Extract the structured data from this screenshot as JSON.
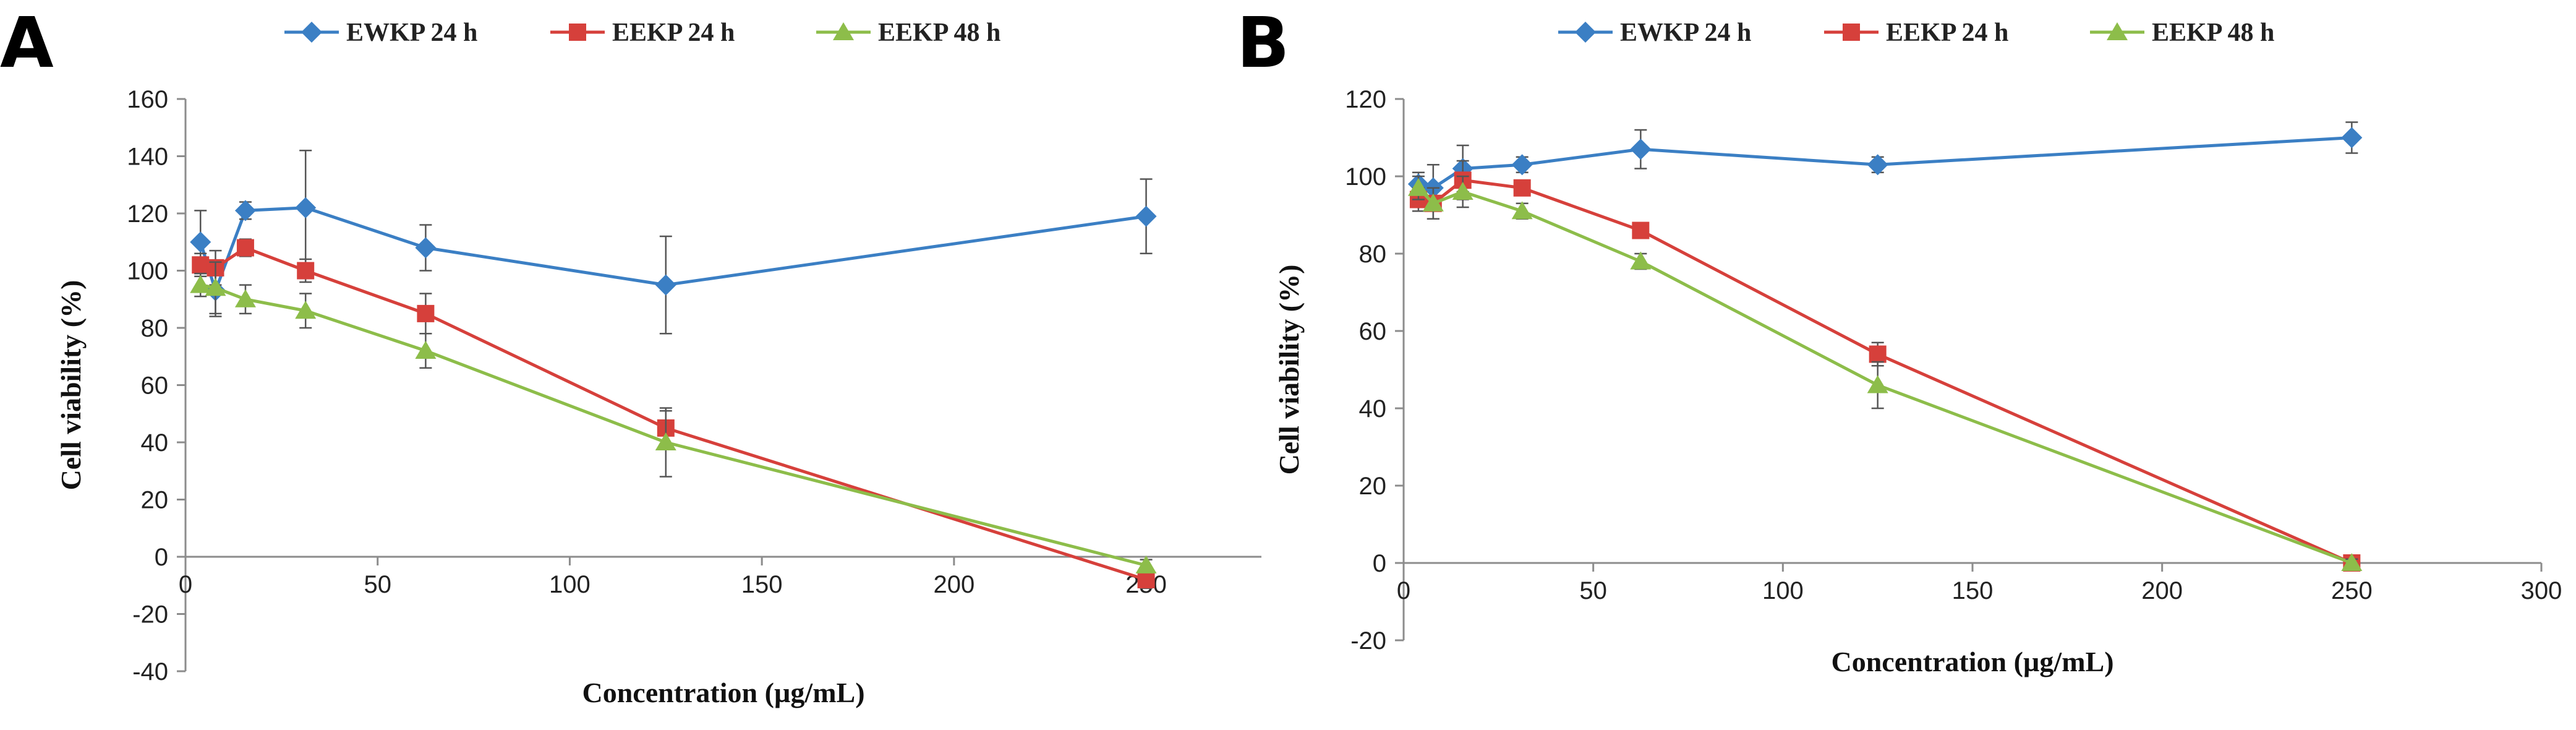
{
  "colors": {
    "EWKP 24 h": "#3b7fc4",
    "EEKP 24 h": "#d6403b",
    "EEKP 48 h": "#8dbd4a"
  },
  "chart_data": [
    {
      "type": "line",
      "panel_label": "A",
      "title": "",
      "xlabel": "Concentration (µg/mL)",
      "ylabel": "Cell viability (%)",
      "xlim": [
        0,
        280
      ],
      "ylim": [
        -40,
        160
      ],
      "xticks": [
        0,
        50,
        100,
        150,
        200,
        250
      ],
      "yticks": [
        -40,
        -20,
        0,
        20,
        40,
        60,
        80,
        100,
        120,
        140,
        160
      ],
      "xtick_labels": [
        "0",
        "50",
        "100",
        "150",
        "200",
        "250"
      ],
      "ytick_labels": [
        "-40",
        "-20",
        "0",
        "20",
        "40",
        "60",
        "80",
        "100",
        "120",
        "140",
        "160"
      ],
      "legend": {
        "position": "top",
        "entries": [
          "EWKP 24 h",
          "EEKP 24 h",
          "EEKP 48 h"
        ]
      },
      "series": [
        {
          "name": "EWKP 24 h",
          "marker": "diamond",
          "x": [
            3.9,
            7.8,
            15.6,
            31.25,
            62.5,
            125,
            250
          ],
          "y": [
            110,
            93,
            121,
            122,
            108,
            95,
            119
          ],
          "err": [
            11,
            9,
            3,
            20,
            8,
            17,
            13
          ]
        },
        {
          "name": "EEKP 24 h",
          "marker": "square",
          "x": [
            3.9,
            7.8,
            15.6,
            31.25,
            62.5,
            125,
            250
          ],
          "y": [
            102,
            101,
            108,
            100,
            85,
            45,
            -8
          ],
          "err": [
            4,
            6,
            3,
            4,
            7,
            6,
            3
          ]
        },
        {
          "name": "EEKP 48 h",
          "marker": "triangle",
          "x": [
            3.9,
            7.8,
            15.6,
            31.25,
            62.5,
            125,
            250
          ],
          "y": [
            95,
            94,
            90,
            86,
            72,
            40,
            -3
          ],
          "err": [
            4,
            9,
            5,
            6,
            6,
            12,
            2
          ]
        }
      ]
    },
    {
      "type": "line",
      "panel_label": "B",
      "title": "",
      "xlabel": "Concentration (µg/mL)",
      "ylabel": "Cell viability (%)",
      "xlim": [
        0,
        300
      ],
      "ylim": [
        -20,
        120
      ],
      "xticks": [
        0,
        50,
        100,
        150,
        200,
        250,
        300
      ],
      "yticks": [
        -20,
        0,
        20,
        40,
        60,
        80,
        100,
        120
      ],
      "xtick_labels": [
        "0",
        "50",
        "100",
        "150",
        "200",
        "250",
        "300"
      ],
      "ytick_labels": [
        "-20",
        "0",
        "20",
        "40",
        "60",
        "80",
        "100",
        "120"
      ],
      "legend": {
        "position": "top",
        "entries": [
          "EWKP 24 h",
          "EEKP 24 h",
          "EEKP 48 h"
        ]
      },
      "series": [
        {
          "name": "EWKP 24 h",
          "marker": "diamond",
          "x": [
            3.9,
            7.8,
            15.6,
            31.25,
            62.5,
            125,
            250
          ],
          "y": [
            98,
            97,
            102,
            103,
            107,
            103,
            110
          ],
          "err": [
            3,
            6,
            6,
            2,
            5,
            2,
            4
          ]
        },
        {
          "name": "EEKP 24 h",
          "marker": "square",
          "x": [
            3.9,
            7.8,
            15.6,
            31.25,
            62.5,
            125,
            250
          ],
          "y": [
            94,
            93,
            99,
            97,
            86,
            54,
            0
          ],
          "err": [
            3,
            4,
            5,
            2,
            2,
            3,
            1
          ]
        },
        {
          "name": "EEKP 48 h",
          "marker": "triangle",
          "x": [
            3.9,
            7.8,
            15.6,
            31.25,
            62.5,
            125,
            250
          ],
          "y": [
            97,
            93,
            96,
            91,
            78,
            46,
            0
          ],
          "err": [
            3,
            4,
            4,
            2,
            2,
            6,
            1
          ]
        }
      ]
    }
  ]
}
